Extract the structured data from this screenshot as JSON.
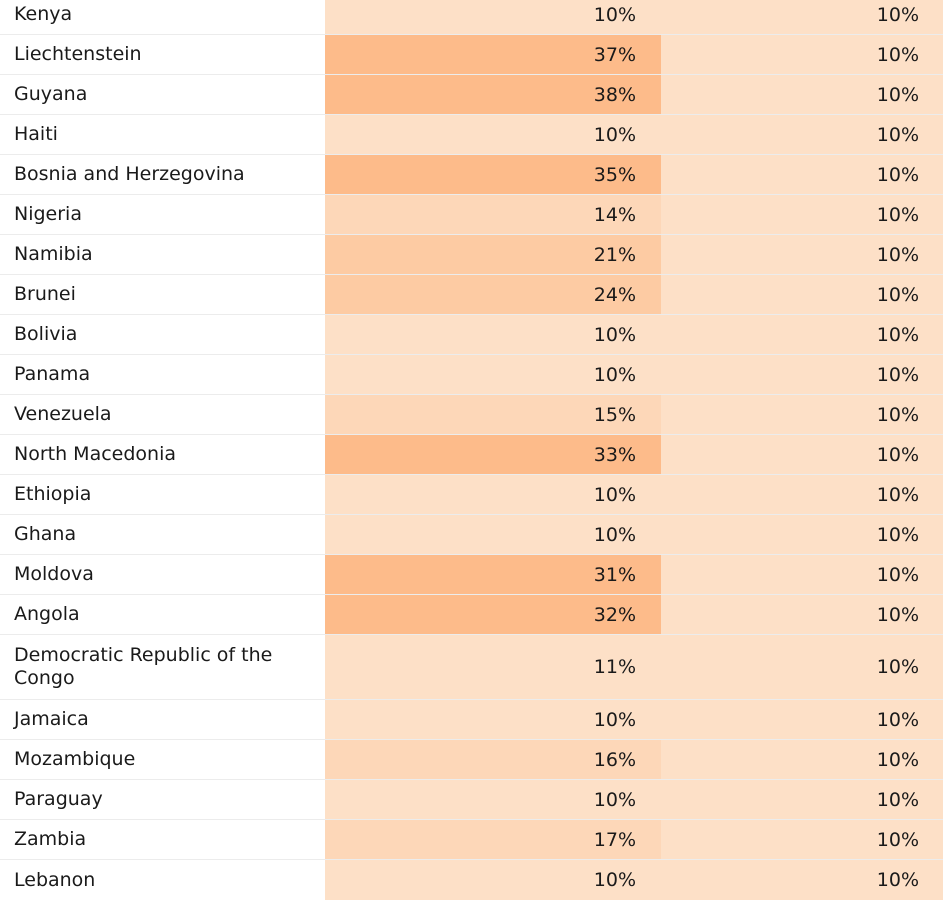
{
  "colors": {
    "low": "#fde0c7",
    "mid": "#fdcba3",
    "high": "#fdbb8a"
  },
  "rows": [
    {
      "country": "Kenya",
      "v1": "10%",
      "v2": "10%",
      "level": 10
    },
    {
      "country": "Liechtenstein",
      "v1": "37%",
      "v2": "10%",
      "level": 37
    },
    {
      "country": "Guyana",
      "v1": "38%",
      "v2": "10%",
      "level": 38
    },
    {
      "country": "Haiti",
      "v1": "10%",
      "v2": "10%",
      "level": 10
    },
    {
      "country": "Bosnia and Herzegovina",
      "v1": "35%",
      "v2": "10%",
      "level": 35
    },
    {
      "country": "Nigeria",
      "v1": "14%",
      "v2": "10%",
      "level": 14
    },
    {
      "country": "Namibia",
      "v1": "21%",
      "v2": "10%",
      "level": 21
    },
    {
      "country": "Brunei",
      "v1": "24%",
      "v2": "10%",
      "level": 24
    },
    {
      "country": "Bolivia",
      "v1": "10%",
      "v2": "10%",
      "level": 10
    },
    {
      "country": "Panama",
      "v1": "10%",
      "v2": "10%",
      "level": 10
    },
    {
      "country": "Venezuela",
      "v1": "15%",
      "v2": "10%",
      "level": 15
    },
    {
      "country": "North Macedonia",
      "v1": "33%",
      "v2": "10%",
      "level": 33
    },
    {
      "country": "Ethiopia",
      "v1": "10%",
      "v2": "10%",
      "level": 10
    },
    {
      "country": "Ghana",
      "v1": "10%",
      "v2": "10%",
      "level": 10
    },
    {
      "country": "Moldova",
      "v1": "31%",
      "v2": "10%",
      "level": 31
    },
    {
      "country": "Angola",
      "v1": "32%",
      "v2": "10%",
      "level": 32
    },
    {
      "country": "Democratic Republic of the Congo",
      "v1": "11%",
      "v2": "10%",
      "level": 11
    },
    {
      "country": "Jamaica",
      "v1": "10%",
      "v2": "10%",
      "level": 10
    },
    {
      "country": "Mozambique",
      "v1": "16%",
      "v2": "10%",
      "level": 16
    },
    {
      "country": "Paraguay",
      "v1": "10%",
      "v2": "10%",
      "level": 10
    },
    {
      "country": "Zambia",
      "v1": "17%",
      "v2": "10%",
      "level": 17
    },
    {
      "country": "Lebanon",
      "v1": "10%",
      "v2": "10%",
      "level": 10
    }
  ]
}
